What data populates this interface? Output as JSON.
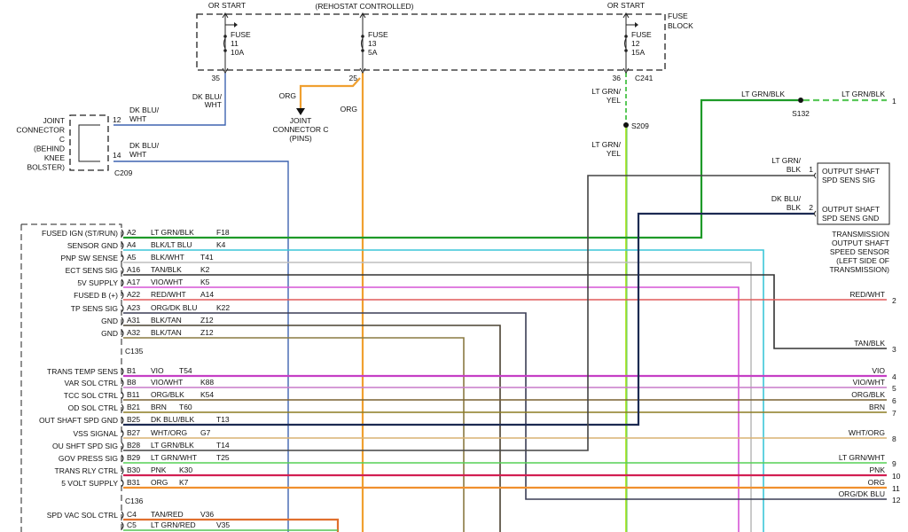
{
  "fuse_block": {
    "title_line1": "FUSE",
    "title_line2": "BLOCK",
    "feeds": [
      "OR START",
      "(REHOSTAT CONTROLLED)",
      "OR START"
    ],
    "fuses": [
      {
        "label": "FUSE",
        "number": "11",
        "rating": "10A",
        "pin": "35"
      },
      {
        "label": "FUSE",
        "number": "13",
        "rating": "5A",
        "pin": "25"
      },
      {
        "label": "FUSE",
        "number": "12",
        "rating": "15A",
        "pin": "36"
      }
    ],
    "connector": "C241"
  },
  "joint_connector": {
    "lines": [
      "JOINT",
      "CONNECTOR",
      "C",
      "(BEHIND",
      "KNEE",
      "BOLSTER)"
    ],
    "pins": [
      "12",
      "14"
    ],
    "connector": "C209",
    "wire_labels": [
      "DK BLU/",
      "WHT"
    ]
  },
  "upper_wires": {
    "fuse11_wire": [
      "DK BLU/",
      "WHT"
    ],
    "fuse13_branch": "ORG",
    "fuse13_main": "ORG",
    "joint_c_pins": [
      "JOINT",
      "CONNECTOR C",
      "(PINS)"
    ],
    "fuse12_wire": [
      "LT GRN/",
      "YEL"
    ],
    "splice_s209": "S209",
    "after_s209": [
      "LT GRN/",
      "YEL"
    ],
    "ltgrn_blk_top": "LT GRN/BLK",
    "splice_s132": "S132",
    "s132_out": "LT GRN/BLK",
    "s132_out_num": "1"
  },
  "sensor": {
    "pins": [
      {
        "num": "1",
        "wire": [
          "LT GRN/",
          "BLK"
        ],
        "function": [
          "OUTPUT SHAFT",
          "SPD SENS SIG"
        ]
      },
      {
        "num": "2",
        "wire": [
          "DK BLU/",
          "BLK"
        ],
        "function": [
          "OUTPUT SHAFT",
          "SPD SENS GND"
        ]
      }
    ],
    "caption": [
      "TRANSMISSION",
      "OUTPUT SHAFT",
      "SPEED SENSOR",
      "(LEFT SIDE OF",
      "TRANSMISSION)"
    ]
  },
  "pcm_rows": [
    {
      "function": "FUSED IGN (ST/RUN)",
      "pin": "A2",
      "wire": "LT GRN/BLK",
      "circuit": "F18",
      "color": "#1e9a28"
    },
    {
      "function": "SENSOR GND",
      "pin": "A4",
      "wire": "BLK/LT BLU",
      "circuit": "K4",
      "color": "#3cc6d8"
    },
    {
      "function": "PNP SW SENSE",
      "pin": "A5",
      "wire": "BLK/WHT",
      "circuit": "T41",
      "color": "#bdbdbd"
    },
    {
      "function": "ECT SENS SIG",
      "pin": "A16",
      "wire": "TAN/BLK",
      "circuit": "K2",
      "color": "#333333"
    },
    {
      "function": "5V SUPPLY",
      "pin": "A17",
      "wire": "VIO/WHT",
      "circuit": "K5",
      "color": "#d555d5"
    },
    {
      "function": "FUSED B (+)",
      "pin": "A22",
      "wire": "RED/WHT",
      "circuit": "A14",
      "color": "#e05a5a"
    },
    {
      "function": "TP SENS SIG",
      "pin": "A23",
      "wire": "ORG/DK BLU",
      "circuit": "K22",
      "color": "#3a3d55"
    },
    {
      "function": "GND",
      "pin": "A31",
      "wire": "BLK/TAN",
      "circuit": "Z12",
      "color": "#4a4232"
    },
    {
      "function": "GND",
      "pin": "A32",
      "wire": "BLK/TAN",
      "circuit": "Z12",
      "color": "#8a7a42"
    },
    {
      "function": "TRANS TEMP SENS",
      "pin": "B1",
      "wire": "VIO",
      "circuit": "T54",
      "color": "#c53fc5"
    },
    {
      "function": "VAR SOL CTRL",
      "pin": "B8",
      "wire": "VIO/WHT",
      "circuit": "K88",
      "color": "#c77ac9"
    },
    {
      "function": "TCC SOL CTRL",
      "pin": "B11",
      "wire": "ORG/BLK",
      "circuit": "K54",
      "color": "#7a6232"
    },
    {
      "function": "OD SOL CTRL",
      "pin": "B21",
      "wire": "BRN",
      "circuit": "T60",
      "color": "#8c7c22"
    },
    {
      "function": "OUT SHAFT SPD GND",
      "pin": "B25",
      "wire": "DK BLU/BLK",
      "circuit": "T13",
      "color": "#1c2a52"
    },
    {
      "function": "VSS SIGNAL",
      "pin": "B27",
      "wire": "WHT/ORG",
      "circuit": "G7",
      "color": "#d9b272"
    },
    {
      "function": "OU SHFT SPD SIG",
      "pin": "B28",
      "wire": "LT GRN/BLK",
      "circuit": "T14",
      "color": "#444444"
    },
    {
      "function": "GOV PRESS SIG",
      "pin": "B29",
      "wire": "LT GRN/WHT",
      "circuit": "T25",
      "color": "#55d055"
    },
    {
      "function": "TRANS RLY CTRL",
      "pin": "B30",
      "wire": "PNK",
      "circuit": "K30",
      "color": "#d21f52"
    },
    {
      "function": "5 VOLT SUPPLY",
      "pin": "B31",
      "wire": "ORG",
      "circuit": "K7",
      "color": "#f0902e"
    },
    {
      "function": "SPD VAC SOL CTRL",
      "pin": "C4",
      "wire": "TAN/RED",
      "circuit": "V36",
      "color": "#e0702e"
    },
    {
      "function": "",
      "pin": "C5",
      "wire": "LT GRN/RED",
      "circuit": "V35",
      "color": "#52c452"
    }
  ],
  "pcm_connectors": [
    "C135",
    "C136"
  ],
  "right_terminals": [
    {
      "label": "RED/WHT",
      "num": "2"
    },
    {
      "label": "TAN/BLK",
      "num": "3"
    },
    {
      "label": "VIO",
      "num": "4"
    },
    {
      "label": "VIO/WHT",
      "num": "5"
    },
    {
      "label": "ORG/BLK",
      "num": "6"
    },
    {
      "label": "BRN",
      "num": "7"
    },
    {
      "label": "WHT/ORG",
      "num": "8"
    },
    {
      "label": "LT GRN/WHT",
      "num": "9"
    },
    {
      "label": "PNK",
      "num": "10"
    },
    {
      "label": "ORG",
      "num": "11"
    },
    {
      "label": "ORG/DK BLU",
      "num": "12"
    }
  ]
}
